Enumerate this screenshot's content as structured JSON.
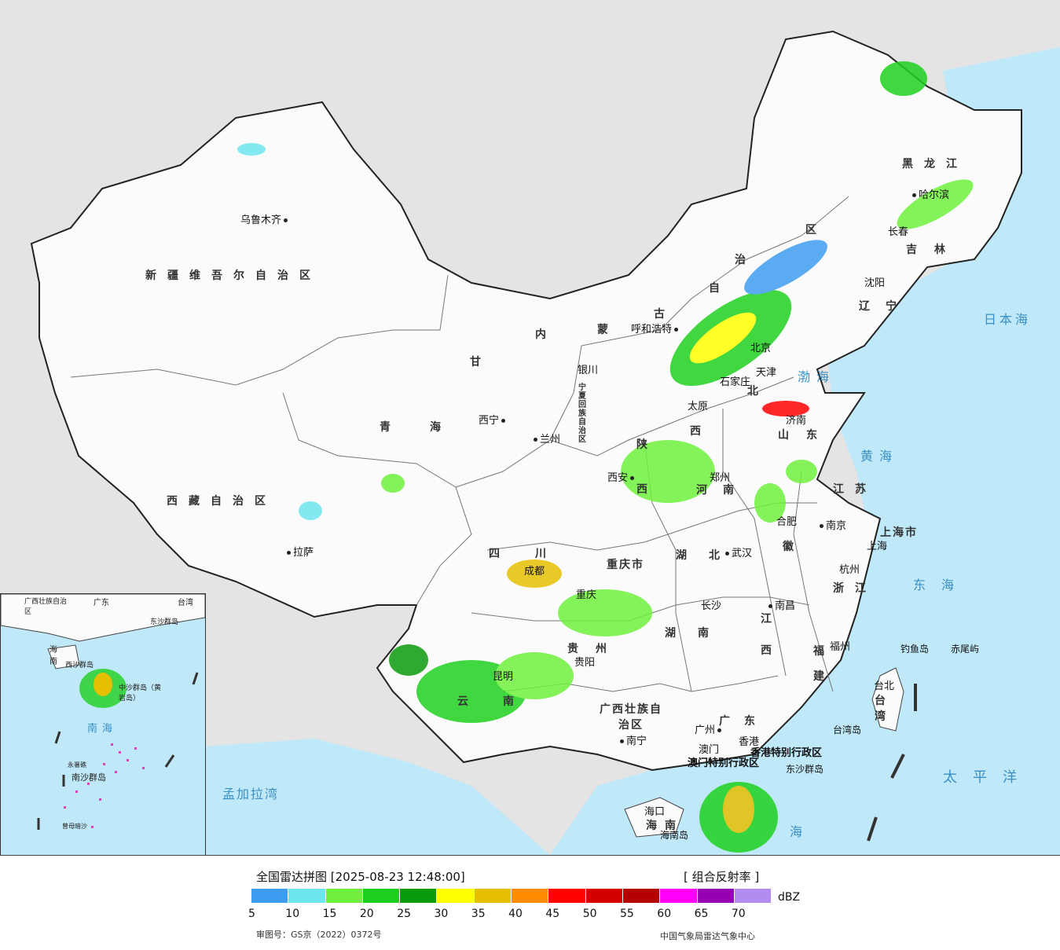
{
  "legend": {
    "title": "全国雷达拼图 [2025-08-23 12:48:00]",
    "product": "[ 组合反射率 ]",
    "unit": "dBZ",
    "review_no": "审图号：GS京（2022）0372号",
    "center": "中国气象局雷达气象中心",
    "colors": [
      "#3d9cf0",
      "#6ee4ee",
      "#6ef03c",
      "#1ed01e",
      "#0a9a0a",
      "#ffff00",
      "#e6c000",
      "#ff8c00",
      "#ff0000",
      "#d40000",
      "#b40000",
      "#ff00ff",
      "#9600b4",
      "#b48cf0"
    ],
    "ticks": [
      "5",
      "10",
      "15",
      "20",
      "25",
      "30",
      "35",
      "40",
      "45",
      "50",
      "55",
      "60",
      "65",
      "70"
    ]
  },
  "provinces": {
    "xinjiang": "新疆维吾尔自治区",
    "xizang": "西藏自治区",
    "qinghai": "青海",
    "gansu": "甘",
    "neimenggu_1": "内",
    "neimenggu_2": "蒙",
    "neimenggu_3": "古",
    "neimenggu_4": "自",
    "neimenggu_5": "治",
    "neimenggu_6": "区",
    "heilongjiang": "黑龙江",
    "jilin": "吉林",
    "liaoning": "辽宁",
    "hebei": "北",
    "shanxi": "西",
    "shandong": "山东",
    "henan": "河南",
    "jiangsu": "江苏",
    "anhui": "徽",
    "hubei": "湖北",
    "hunan": "湖南",
    "jiangxi": "江",
    "jiangxi2": "西",
    "zhejiang": "浙江",
    "fujian_1": "福",
    "fujian_2": "建",
    "guangdong": "广东",
    "guangxi": "广西壮族自治区",
    "sichuan": "四川",
    "chongqing": "重庆市",
    "guizhou": "贵州",
    "yunnan_1": "云",
    "yunnan_2": "南",
    "shaanxi": "陕",
    "shaanxi2": "西",
    "ningxia": "宁夏回族自治区",
    "shanghai": "上海市",
    "taiwan": "台湾",
    "hainan": "海南",
    "hk": "香港特别行政区",
    "macau": "澳门特别行政区"
  },
  "cities": {
    "urumqi": "乌鲁木齐",
    "lhasa": "拉萨",
    "xining": "西宁",
    "lanzhou": "兰州",
    "yinchuan": "银川",
    "hohhot": "呼和浩特",
    "beijing": "北京",
    "tianjin": "天津",
    "shijiazhuang": "石家庄",
    "taiyuan": "太原",
    "jinan": "济南",
    "zhengzhou": "郑州",
    "xian": "西安",
    "hefei": "合肥",
    "nanjing": "南京",
    "shanghai": "上海",
    "hangzhou": "杭州",
    "wuhan": "武汉",
    "chengdu": "成都",
    "chongqing": "重庆",
    "guiyang": "贵阳",
    "kunming": "昆明",
    "changsha": "长沙",
    "nanchang": "南昌",
    "fuzhou": "福州",
    "taibei": "台北",
    "guangzhou": "广州",
    "nanning": "南宁",
    "haikou": "海口",
    "hongkong": "香港",
    "macau": "澳门",
    "shenyang": "沈阳",
    "changchun": "长春",
    "harbin": "哈尔滨",
    "diaoyu": "钓鱼岛",
    "chiwei": "赤尾屿",
    "taiwan_island": "台湾岛",
    "hainan_island": "海南岛",
    "dongsha": "东沙群岛"
  },
  "seas": {
    "bohai": "渤海",
    "huanghai": "黄海",
    "donghai": "东海",
    "nanhai": "海",
    "japan_sea": "日本海",
    "pacific": "太平洋",
    "bengal": "孟加拉湾"
  },
  "inset": {
    "nanhai": "南海",
    "guangdong": "广东",
    "guangxi": "广西壮族自治区",
    "taiwan": "台湾",
    "hainan": "海南",
    "dongsha": "东沙群岛",
    "xisha": "西沙群岛",
    "zhongsha": "中沙群岛（黄岩岛）",
    "nansha": "南沙群岛",
    "yongshu": "永暑礁",
    "zengmu": "曾母暗沙"
  }
}
